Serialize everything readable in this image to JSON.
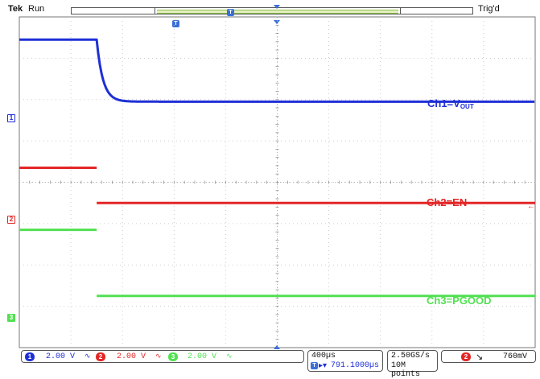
{
  "header": {
    "brand": "Tek",
    "run_state": "Run",
    "trigger_status": "Trig'd",
    "trigger_marker": "T"
  },
  "channels": [
    {
      "id": "1",
      "label_prefix": "Ch1=V",
      "label_sub": "OUT",
      "color": "#1f2fd6"
    },
    {
      "id": "2",
      "label_prefix": "Ch2=EN",
      "label_sub": "",
      "color": "#e32626"
    },
    {
      "id": "3",
      "label_prefix": "Ch3=PGOOD",
      "label_sub": "",
      "color": "#52e052"
    }
  ],
  "status": {
    "ch1": {
      "num": "1",
      "scale": "2.00 V"
    },
    "ch2": {
      "num": "2",
      "scale": "2.00 V"
    },
    "ch3": {
      "num": "3",
      "scale": "2.00 V"
    },
    "horizontal_scale": "400µs",
    "horizontal_position": "791.1000µs",
    "sample_rate": "2.50GS/s",
    "record_length": "10M points",
    "trigger_channel": "2",
    "trigger_slope": "falling-edge-icon",
    "trigger_level": "760mV"
  },
  "chart_data": {
    "type": "line",
    "title": "",
    "xlabel": "",
    "ylabel": "",
    "x_divisions": 10,
    "y_divisions": 8,
    "grid": true,
    "step_time_div": 1.5,
    "series": [
      {
        "name": "Ch1=VOUT",
        "high_div": 0.55,
        "low_div": 2.05,
        "decay_div": 0.12
      },
      {
        "name": "Ch2=EN",
        "high_div": 3.65,
        "low_div": 4.5
      },
      {
        "name": "Ch3=PGOOD",
        "high_div": 5.15,
        "low_div": 6.75
      }
    ]
  }
}
